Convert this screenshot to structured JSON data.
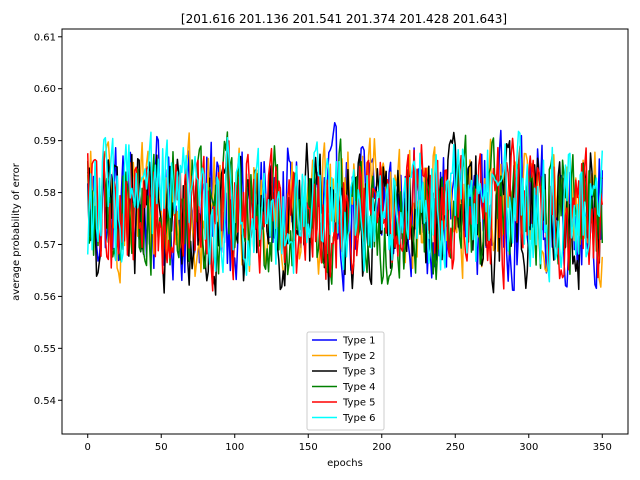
{
  "chart_data": {
    "type": "line",
    "title": "[201.616 201.136 201.541 201.374 201.428 201.643]",
    "xlabel": "epochs",
    "ylabel": "average probability of error",
    "xlim": [
      -17.5,
      367.5
    ],
    "ylim": [
      0.5335,
      0.6115
    ],
    "x_ticks": [
      0,
      50,
      100,
      150,
      200,
      250,
      300,
      350
    ],
    "y_ticks": [
      0.54,
      0.55,
      0.56,
      0.57,
      0.58,
      0.59,
      0.6,
      0.61
    ],
    "y_tick_labels": [
      "0.54",
      "0.55",
      "0.56",
      "0.57",
      "0.58",
      "0.59",
      "0.60",
      "0.61"
    ],
    "grid": false,
    "legend_position": "lower center",
    "x_range": [
      0,
      350
    ],
    "series": [
      {
        "name": "Type 1",
        "color": "#0000ff",
        "center": 0.5768,
        "amplitude": 0.0105,
        "min": 0.5435,
        "max": 0.6065
      },
      {
        "name": "Type 2",
        "color": "#ffa500",
        "center": 0.5772,
        "amplitude": 0.01,
        "min": 0.544,
        "max": 0.605
      },
      {
        "name": "Type 3",
        "color": "#000000",
        "center": 0.5755,
        "amplitude": 0.0105,
        "min": 0.547,
        "max": 0.604
      },
      {
        "name": "Type 4",
        "color": "#008000",
        "center": 0.5768,
        "amplitude": 0.01,
        "min": 0.537,
        "max": 0.6082
      },
      {
        "name": "Type 5",
        "color": "#ff0000",
        "center": 0.5762,
        "amplitude": 0.0105,
        "min": 0.5435,
        "max": 0.608
      },
      {
        "name": "Type 6",
        "color": "#00ffff",
        "center": 0.5778,
        "amplitude": 0.01,
        "min": 0.542,
        "max": 0.6065
      }
    ]
  }
}
